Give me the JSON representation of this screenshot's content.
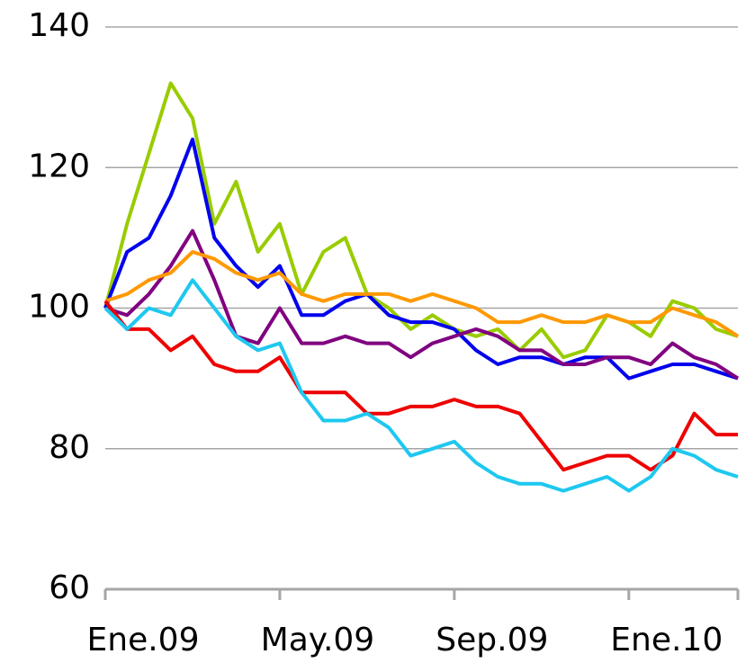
{
  "chart_data": {
    "type": "line",
    "categories": [
      "Ene.09",
      null,
      null,
      null,
      null,
      null,
      null,
      null,
      "May.09",
      null,
      null,
      null,
      null,
      null,
      null,
      null,
      "Sep.09",
      null,
      null,
      null,
      null,
      null,
      null,
      null,
      "Ene.10",
      null,
      null,
      null,
      null,
      null
    ],
    "series": [
      {
        "color": "#99cc00",
        "values": [
          100,
          112,
          122,
          132,
          127,
          112,
          118,
          108,
          112,
          102,
          108,
          110,
          102,
          100,
          97,
          99,
          97,
          96,
          97,
          94,
          97,
          93,
          94,
          99,
          98,
          96,
          101,
          100,
          97,
          96
        ]
      },
      {
        "color": "#0000ee",
        "values": [
          100,
          108,
          110,
          116,
          124,
          110,
          106,
          103,
          106,
          99,
          99,
          101,
          102,
          99,
          98,
          98,
          97,
          94,
          92,
          93,
          93,
          92,
          93,
          93,
          90,
          91,
          92,
          92,
          91,
          90
        ]
      },
      {
        "color": "#800080",
        "values": [
          100,
          99,
          102,
          106,
          111,
          104,
          96,
          95,
          100,
          95,
          95,
          96,
          95,
          95,
          93,
          95,
          96,
          97,
          96,
          94,
          94,
          92,
          92,
          93,
          93,
          92,
          95,
          93,
          92,
          90
        ]
      },
      {
        "color": "#ff9900",
        "values": [
          101,
          102,
          104,
          105,
          108,
          107,
          105,
          104,
          105,
          102,
          101,
          102,
          102,
          102,
          101,
          102,
          101,
          100,
          98,
          98,
          99,
          98,
          98,
          99,
          98,
          98,
          100,
          99,
          98,
          96
        ]
      },
      {
        "color": "#ee0000",
        "values": [
          101,
          97,
          97,
          94,
          96,
          92,
          91,
          91,
          93,
          88,
          88,
          88,
          85,
          85,
          86,
          86,
          87,
          86,
          86,
          85,
          81,
          77,
          78,
          79,
          79,
          77,
          79,
          85,
          82,
          82
        ]
      },
      {
        "color": "#1ec8f0",
        "values": [
          100,
          97,
          100,
          99,
          104,
          100,
          96,
          94,
          95,
          88,
          84,
          84,
          85,
          83,
          79,
          80,
          81,
          78,
          76,
          75,
          75,
          74,
          75,
          76,
          74,
          76,
          80,
          79,
          77,
          76
        ]
      }
    ],
    "ylim": [
      60,
      140
    ],
    "yticks": [
      60,
      80,
      100,
      120,
      140
    ],
    "grid": true
  }
}
